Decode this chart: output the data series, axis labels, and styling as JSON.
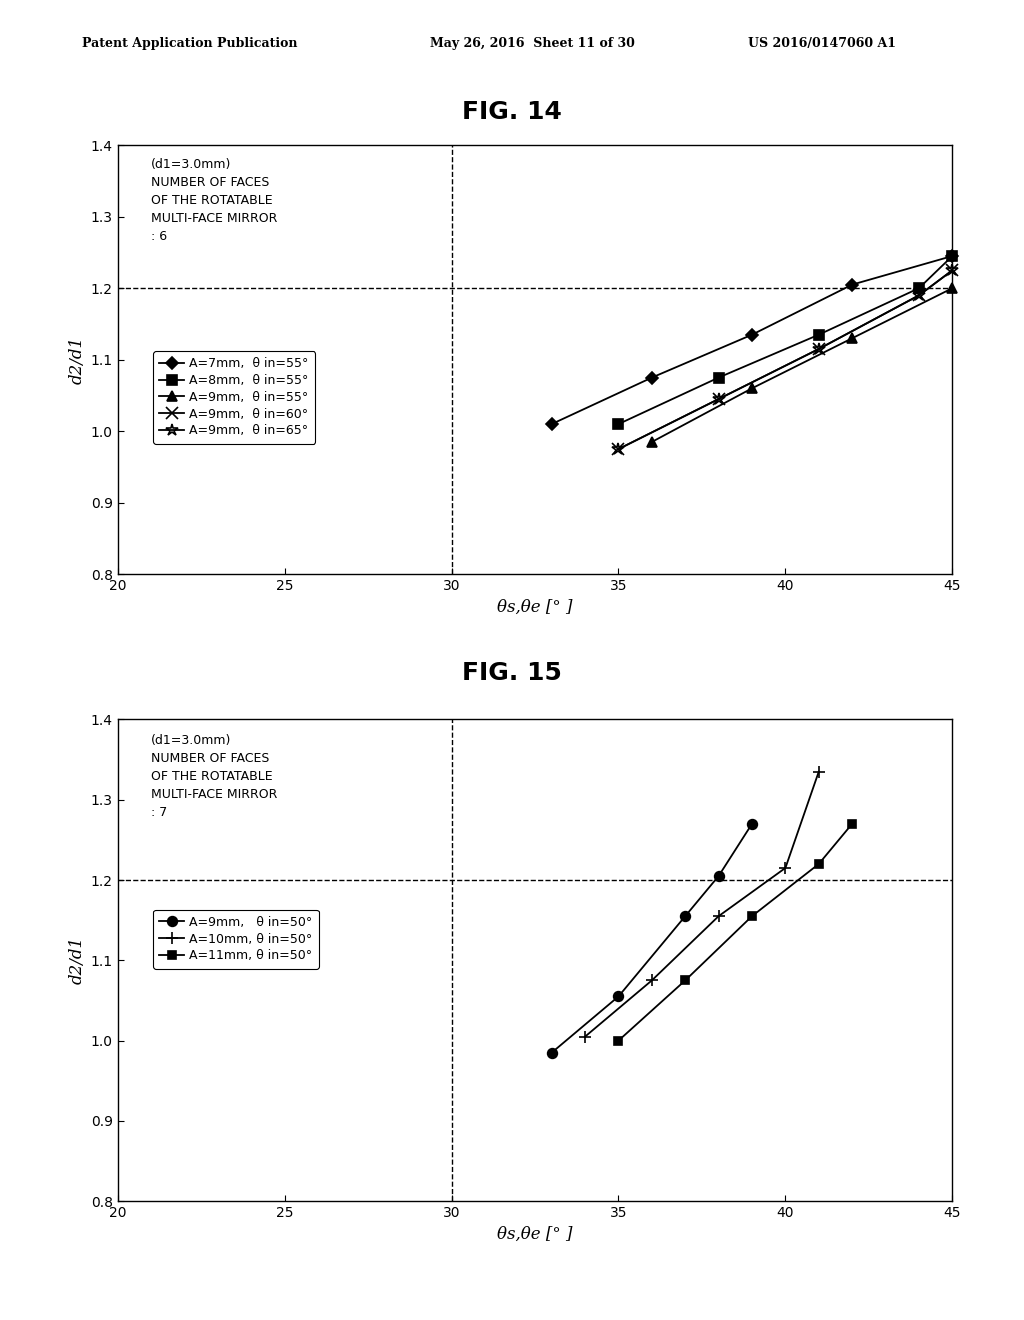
{
  "fig14": {
    "title": "FIG. 14",
    "annotation_line1": "(d1=3.0mm)",
    "annotation_line2": "NUMBER OF FACES",
    "annotation_line3": "OF THE ROTATABLE",
    "annotation_line4": "MULTI-FACE MIRROR",
    "annotation_line5": ": 6",
    "xlabel": "θs,θe [° ]",
    "ylabel": "d2/d1",
    "xlim": [
      20,
      45
    ],
    "ylim": [
      0.8,
      1.4
    ],
    "xticks": [
      20,
      25,
      30,
      35,
      40,
      45
    ],
    "yticks": [
      0.8,
      0.9,
      1.0,
      1.1,
      1.2,
      1.3,
      1.4
    ],
    "hline_y": 1.2,
    "vline_x": 30,
    "series": [
      {
        "label": "A=7mm,  θ in=55°",
        "marker": "D",
        "markersize": 6,
        "x": [
          33,
          36,
          39,
          42,
          45
        ],
        "y": [
          1.01,
          1.075,
          1.135,
          1.205,
          1.245
        ]
      },
      {
        "label": "A=8mm,  θ in=55°",
        "marker": "s",
        "markersize": 7,
        "x": [
          35,
          38,
          41,
          44,
          45
        ],
        "y": [
          1.01,
          1.075,
          1.135,
          1.2,
          1.245
        ]
      },
      {
        "label": "A=9mm,  θ in=55°",
        "marker": "^",
        "markersize": 7,
        "x": [
          36,
          39,
          42,
          45
        ],
        "y": [
          0.985,
          1.06,
          1.13,
          1.2
        ]
      },
      {
        "label": "A=9mm,  θ in=60°",
        "marker": "x",
        "markersize": 8,
        "x": [
          35,
          38,
          41,
          44,
          45
        ],
        "y": [
          0.975,
          1.045,
          1.115,
          1.19,
          1.225
        ]
      },
      {
        "label": "A=9mm,  θ in=65°",
        "marker": "*",
        "markersize": 9,
        "x": [
          35,
          38,
          41,
          44,
          45
        ],
        "y": [
          0.975,
          1.045,
          1.115,
          1.19,
          1.225
        ]
      }
    ]
  },
  "fig15": {
    "title": "FIG. 15",
    "annotation_line1": "(d1=3.0mm)",
    "annotation_line2": "NUMBER OF FACES",
    "annotation_line3": "OF THE ROTATABLE",
    "annotation_line4": "MULTI-FACE MIRROR",
    "annotation_line5": ": 7",
    "xlabel": "θs,θe [° ]",
    "ylabel": "d2/d1",
    "xlim": [
      20,
      45
    ],
    "ylim": [
      0.8,
      1.4
    ],
    "xticks": [
      20,
      25,
      30,
      35,
      40,
      45
    ],
    "yticks": [
      0.8,
      0.9,
      1.0,
      1.1,
      1.2,
      1.3,
      1.4
    ],
    "hline_y": 1.2,
    "vline_x": 30,
    "series": [
      {
        "label": "A=9mm,   θ in=50°",
        "marker": "o",
        "markersize": 7,
        "filled": true,
        "x": [
          33,
          35,
          37,
          38,
          39
        ],
        "y": [
          0.985,
          1.055,
          1.155,
          1.205,
          1.27
        ]
      },
      {
        "label": "A=10mm, θ in=50°",
        "marker": "+",
        "markersize": 9,
        "filled": false,
        "x": [
          34,
          36,
          38,
          40,
          41
        ],
        "y": [
          1.005,
          1.075,
          1.155,
          1.215,
          1.335
        ]
      },
      {
        "label": "A=11mm, θ in=50°",
        "marker": "s",
        "markersize": 6,
        "filled": true,
        "x": [
          35,
          37,
          39,
          41,
          42
        ],
        "y": [
          1.0,
          1.075,
          1.155,
          1.22,
          1.27
        ]
      }
    ]
  },
  "header_left": "Patent Application Publication",
  "header_mid": "May 26, 2016  Sheet 11 of 30",
  "header_right": "US 2016/0147060 A1",
  "background_color": "#ffffff"
}
